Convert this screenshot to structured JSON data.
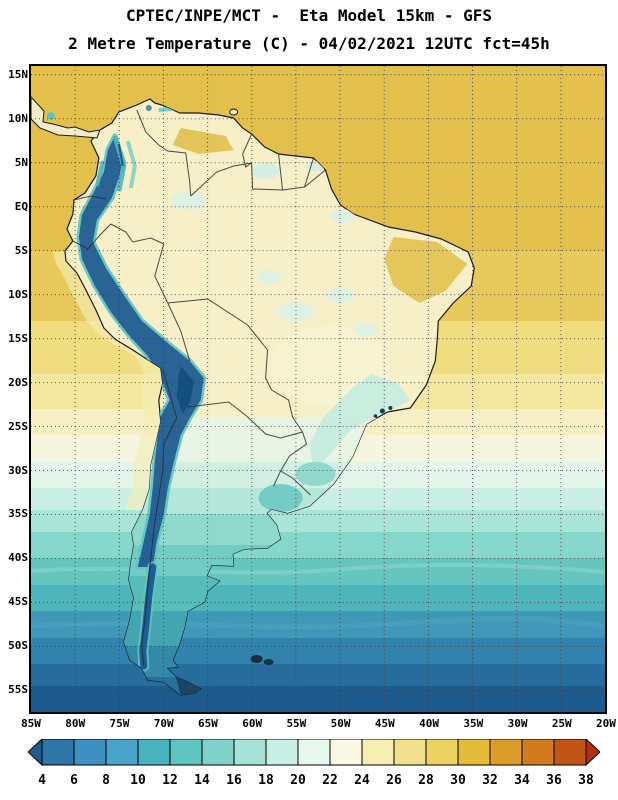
{
  "header": {
    "line1": "CPTEC/INPE/MCT -  Eta Model 15km - GFS",
    "line2": "2 Metre Temperature (C) - 04/02/2021 12UTC fct=45h"
  },
  "axes": {
    "lat_labels": [
      "15N",
      "10N",
      "5N",
      "EQ",
      "5S",
      "10S",
      "15S",
      "20S",
      "25S",
      "30S",
      "35S",
      "40S",
      "45S",
      "50S",
      "55S"
    ],
    "lon_labels": [
      "85W",
      "80W",
      "75W",
      "70W",
      "65W",
      "60W",
      "55W",
      "50W",
      "45W",
      "40W",
      "35W",
      "30W",
      "25W",
      "20W"
    ]
  },
  "colorbar": {
    "tick_labels": [
      "4",
      "6",
      "8",
      "10",
      "12",
      "14",
      "16",
      "18",
      "20",
      "22",
      "24",
      "26",
      "28",
      "30",
      "32",
      "34",
      "36",
      "38"
    ],
    "segment_colors": [
      "#1d5b8e",
      "#2d74a9",
      "#3e8fc2",
      "#4aa3c9",
      "#47b4bd",
      "#5ec5c0",
      "#7ed2c9",
      "#a5e2d8",
      "#c8efe5",
      "#e7f8ef",
      "#fbf8e3",
      "#f6eeb2",
      "#f2e18c",
      "#ecd35f",
      "#e4bc3b",
      "#dc9c2a",
      "#d17a1e",
      "#c25415",
      "#b02f10"
    ]
  }
}
